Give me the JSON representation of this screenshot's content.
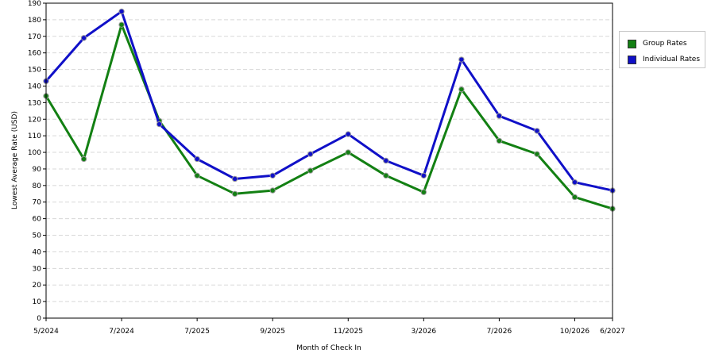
{
  "chart_data": {
    "type": "line",
    "xlabel": "Month of Check In",
    "ylabel": "Lowest Average Rate (USD)",
    "ylim": [
      0,
      190
    ],
    "ytick_step": 10,
    "grid": true,
    "legend_position": "right",
    "x_tick_labels": [
      {
        "index": 0,
        "label": "5/2024"
      },
      {
        "index": 2,
        "label": "7/2024"
      },
      {
        "index": 4,
        "label": "7/2025"
      },
      {
        "index": 6,
        "label": "9/2025"
      },
      {
        "index": 8,
        "label": "11/2025"
      },
      {
        "index": 10,
        "label": "3/2026"
      },
      {
        "index": 12,
        "label": "7/2026"
      },
      {
        "index": 14,
        "label": "10/2026"
      },
      {
        "index": 15,
        "label": "6/2027"
      }
    ],
    "series": [
      {
        "name": "Group Rates",
        "color": "#138013",
        "values": [
          134,
          96,
          177,
          119,
          86,
          75,
          77,
          89,
          100,
          86,
          76,
          138,
          107,
          99,
          73,
          66
        ]
      },
      {
        "name": "Individual Rates",
        "color": "#1010c8",
        "values": [
          143,
          169,
          185,
          117,
          96,
          84,
          86,
          99,
          111,
          95,
          86,
          156,
          122,
          113,
          82,
          77
        ]
      }
    ]
  }
}
